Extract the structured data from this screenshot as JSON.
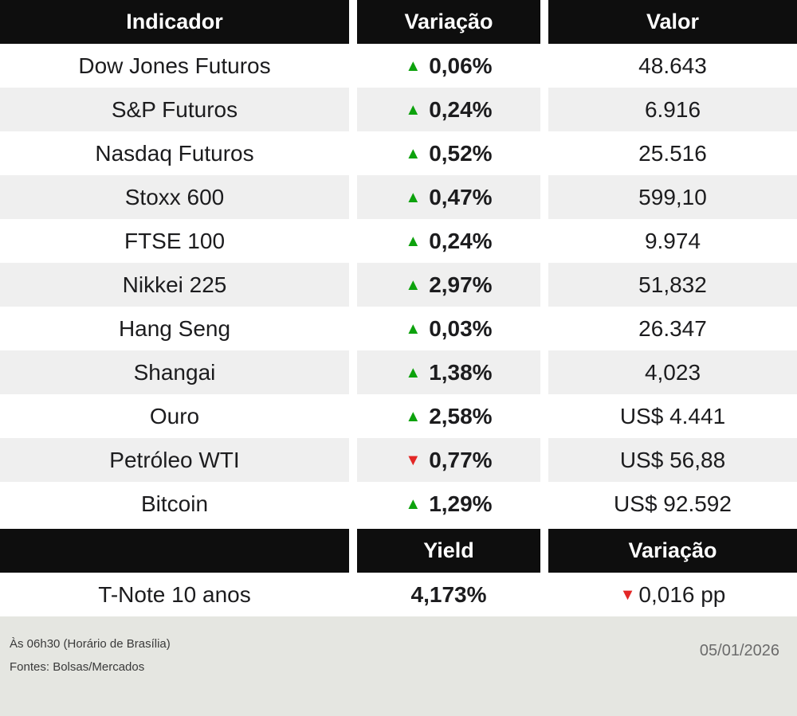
{
  "glyphs": {
    "up": "▲",
    "down": "▼"
  },
  "colors": {
    "up": "#0da20d",
    "down": "#e32726",
    "header_bg": "#0e0e0e",
    "alt_row_bg": "#efefef",
    "footer_bg": "#e5e6e1"
  },
  "chart_data": [
    {
      "type": "table",
      "columns": [
        "Indicador",
        "Variação",
        "Valor"
      ],
      "rows": [
        {
          "indicator": "Dow Jones Futuros",
          "direction": "up",
          "variation": "0,06%",
          "value": "48.643"
        },
        {
          "indicator": "S&P Futuros",
          "direction": "up",
          "variation": "0,24%",
          "value": "6.916"
        },
        {
          "indicator": "Nasdaq Futuros",
          "direction": "up",
          "variation": "0,52%",
          "value": "25.516"
        },
        {
          "indicator": "Stoxx 600",
          "direction": "up",
          "variation": "0,47%",
          "value": "599,10"
        },
        {
          "indicator": "FTSE 100",
          "direction": "up",
          "variation": "0,24%",
          "value": "9.974"
        },
        {
          "indicator": "Nikkei 225",
          "direction": "up",
          "variation": "2,97%",
          "value": "51,832"
        },
        {
          "indicator": "Hang Seng",
          "direction": "up",
          "variation": "0,03%",
          "value": "26.347"
        },
        {
          "indicator": "Shangai",
          "direction": "up",
          "variation": "1,38%",
          "value": "4,023"
        },
        {
          "indicator": "Ouro",
          "direction": "up",
          "variation": "2,58%",
          "value": "US$ 4.441"
        },
        {
          "indicator": "Petróleo WTI",
          "direction": "down",
          "variation": "0,77%",
          "value": "US$ 56,88"
        },
        {
          "indicator": "Bitcoin",
          "direction": "up",
          "variation": "1,29%",
          "value": "US$ 92.592"
        }
      ]
    },
    {
      "type": "table",
      "columns": [
        "",
        "Yield",
        "Variação"
      ],
      "rows": [
        {
          "indicator": "T-Note 10 anos",
          "yield": "4,173%",
          "direction": "down",
          "variation": "0,016 pp"
        }
      ]
    }
  ],
  "footer": {
    "time_note": "Às 06h30 (Horário de Brasília)",
    "sources": "Fontes: Bolsas/Mercados",
    "date": "05/01/2026"
  }
}
